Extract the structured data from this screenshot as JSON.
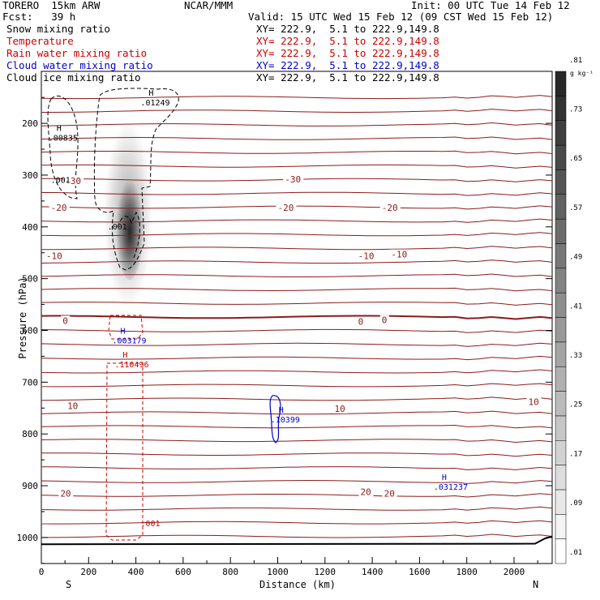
{
  "header": {
    "model": "TORERO  15km ARW",
    "center": "NCAR/MMM",
    "init": "Init: 00 UTC Tue 14 Feb 12",
    "fcst": "Fcst:   39 h",
    "valid": "Valid: 15 UTC Wed 15 Feb 12 (09 CST Wed 15 Feb 12)"
  },
  "fields": [
    {
      "label": "Snow mixing ratio",
      "xy": "XY= 222.9,  5.1 to 222.9,149.8",
      "color": "#000000"
    },
    {
      "label": "Temperature",
      "xy": "XY= 222.9,  5.1 to 222.9,149.8",
      "color": "#cc0000"
    },
    {
      "label": "Rain water mixing ratio",
      "xy": "XY= 222.9,  5.1 to 222.9,149.8",
      "color": "#cc0000"
    },
    {
      "label": "Cloud water mixing ratio",
      "xy": "XY= 222.9,  5.1 to 222.9,149.8",
      "color": "#0000cc"
    },
    {
      "label": "Cloud ice mixing ratio",
      "xy": "XY= 222.9,  5.1 to 222.9,149.8",
      "color": "#000000"
    }
  ],
  "chart_data": {
    "type": "cross-section",
    "xlabel": "Distance (km)",
    "ylabel": "Pressure (hPa)",
    "xlim": [
      0,
      2180
    ],
    "ylim": [
      1050,
      130
    ],
    "x_ticks": [
      0,
      200,
      400,
      600,
      800,
      1000,
      1200,
      1400,
      1600,
      1800,
      2000
    ],
    "y_ticks": [
      200,
      300,
      400,
      500,
      600,
      700,
      800,
      900,
      1000
    ],
    "left_end": "S",
    "right_end": "N",
    "colorbar": {
      "unit": "g kg⁻¹",
      "labels": [
        ".01",
        ".09",
        ".17",
        ".25",
        ".33",
        ".41",
        ".49",
        ".57",
        ".65",
        ".73",
        ".81"
      ]
    },
    "temperature_isotherm_labels": [
      {
        "value": "-30",
        "x": 100,
        "p": 311
      },
      {
        "value": "-30",
        "x": 1030,
        "p": 308
      },
      {
        "value": "-20",
        "x": 40,
        "p": 363
      },
      {
        "value": "-20",
        "x": 1000,
        "p": 363
      },
      {
        "value": "-20",
        "x": 1440,
        "p": 363
      },
      {
        "value": "-10",
        "x": 20,
        "p": 456
      },
      {
        "value": "-10",
        "x": 1340,
        "p": 456
      },
      {
        "value": "-10",
        "x": 1480,
        "p": 453
      },
      {
        "value": "0",
        "x": 90,
        "p": 581
      },
      {
        "value": "0",
        "x": 1340,
        "p": 583
      },
      {
        "value": "0",
        "x": 1440,
        "p": 580
      },
      {
        "value": "10",
        "x": 110,
        "p": 746
      },
      {
        "value": "10",
        "x": 1240,
        "p": 751
      },
      {
        "value": "10",
        "x": 2060,
        "p": 738
      },
      {
        "value": "20",
        "x": 80,
        "p": 915
      },
      {
        "value": "20",
        "x": 1350,
        "p": 912
      },
      {
        "value": "20",
        "x": 1450,
        "p": 915
      }
    ],
    "extrema": [
      {
        "mark": "H",
        "value": ".01249",
        "x": 420,
        "p": 162,
        "color": "#000000"
      },
      {
        "mark": "H",
        "value": ".00835",
        "x": 30,
        "p": 230,
        "color": "#000000"
      },
      {
        "mark": "H",
        "value": ".003179",
        "x": 300,
        "p": 622,
        "color": "#0000cc"
      },
      {
        "mark": "H",
        "value": ".110496",
        "x": 310,
        "p": 668,
        "color": "#cc0000"
      },
      {
        "mark": "H",
        "value": ".10399",
        "x": 970,
        "p": 775,
        "color": "#0000cc"
      },
      {
        "mark": "H",
        "value": ".031237",
        "x": 1660,
        "p": 905,
        "color": "#0000cc"
      }
    ],
    "contour_labels": [
      {
        "value": ".001",
        "x": 40,
        "p": 315,
        "color": "#000000"
      },
      {
        "value": ".001",
        "x": 280,
        "p": 405,
        "color": "#000000"
      },
      {
        "value": ".001",
        "x": 420,
        "p": 978,
        "color": "#cc0000"
      }
    ]
  }
}
